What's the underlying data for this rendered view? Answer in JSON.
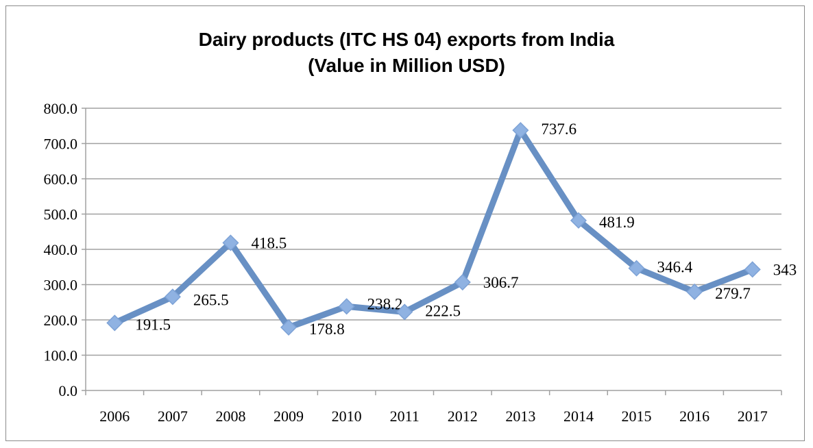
{
  "chart_data": {
    "type": "line",
    "title": "Dairy products (ITC HS 04) exports from India",
    "subtitle": "(Value in Million USD)",
    "xlabel": "",
    "ylabel": "",
    "categories": [
      "2006",
      "2007",
      "2008",
      "2009",
      "2010",
      "2011",
      "2012",
      "2013",
      "2014",
      "2015",
      "2016",
      "2017"
    ],
    "values": [
      191.5,
      265.5,
      418.5,
      178.8,
      238.2,
      222.5,
      306.7,
      737.6,
      481.9,
      346.4,
      279.7,
      343
    ],
    "data_labels": [
      "191.5",
      "265.5",
      "418.5",
      "178.8",
      "238.2",
      "222.5",
      "306.7",
      "737.6",
      "481.9",
      "346.4",
      "279.7",
      "343"
    ],
    "ylim": [
      0,
      800
    ],
    "yticks": [
      "0.0",
      "100.0",
      "200.0",
      "300.0",
      "400.0",
      "500.0",
      "600.0",
      "700.0",
      "800.0"
    ],
    "grid": true,
    "legend": "none",
    "marker": "diamond",
    "colors": {
      "line": "#6890c4",
      "marker": "#8fb2e2",
      "grid": "#a0a0a0"
    }
  }
}
